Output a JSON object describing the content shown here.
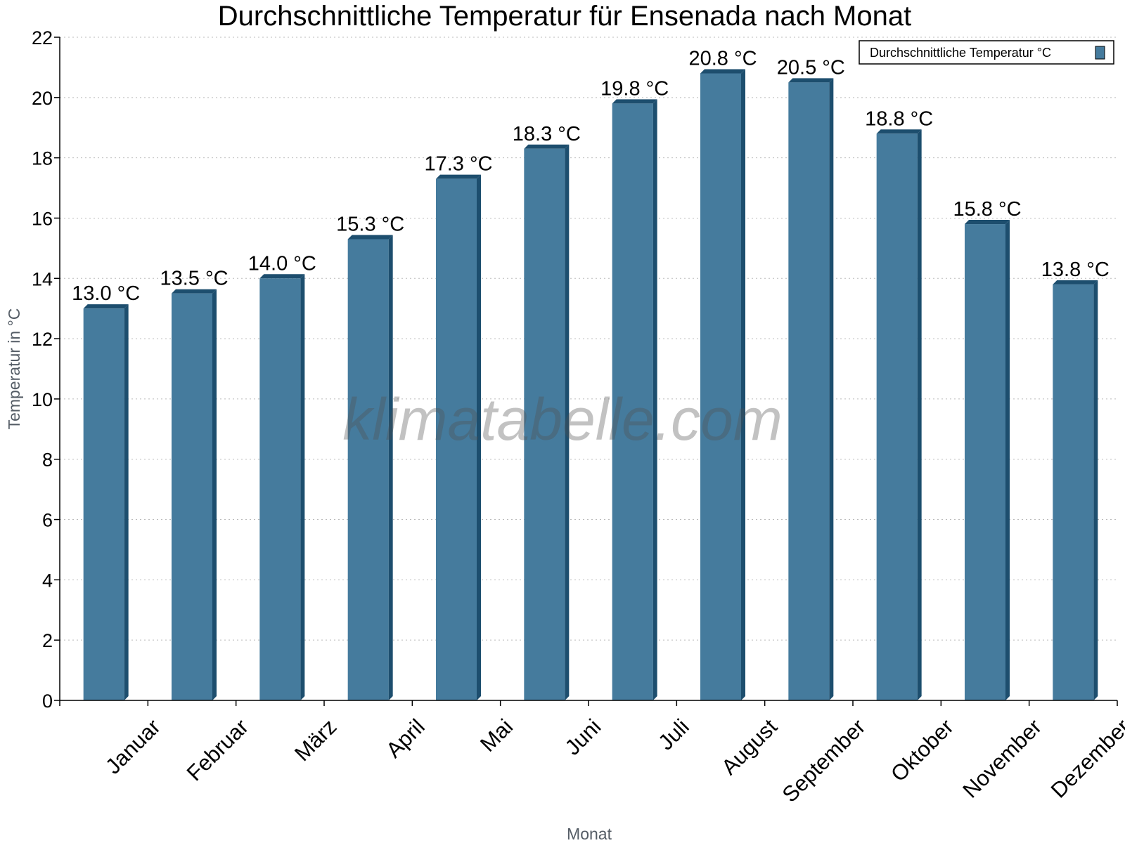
{
  "chart_data": {
    "type": "bar",
    "title": "Durchschnittliche Temperatur für Ensenada nach Monat",
    "xlabel": "Monat",
    "ylabel": "Temperatur in °C",
    "ylim": [
      0,
      22
    ],
    "yticks": [
      0,
      2,
      4,
      6,
      8,
      10,
      12,
      14,
      16,
      18,
      20,
      22
    ],
    "grid": "horizontal dotted",
    "legend_position": "top-right",
    "categories": [
      "Januar",
      "Februar",
      "März",
      "April",
      "Mai",
      "Juni",
      "Juli",
      "August",
      "September",
      "Oktober",
      "November",
      "Dezember"
    ],
    "series": [
      {
        "name": "Durchschnittliche Temperatur °C",
        "values": [
          13.0,
          13.5,
          14.0,
          15.3,
          17.3,
          18.3,
          19.8,
          20.8,
          20.5,
          18.8,
          15.8,
          13.8
        ],
        "labels": [
          "13.0 °C",
          "13.5 °C",
          "14.0 °C",
          "15.3 °C",
          "17.3 °C",
          "18.3 °C",
          "19.8 °C",
          "20.8 °C",
          "20.5 °C",
          "18.8 °C",
          "15.8 °C",
          "13.8 °C"
        ],
        "color": "#457b9d",
        "shade_color": "#1d4e6e"
      }
    ],
    "watermark": "klimatabelle.com"
  }
}
